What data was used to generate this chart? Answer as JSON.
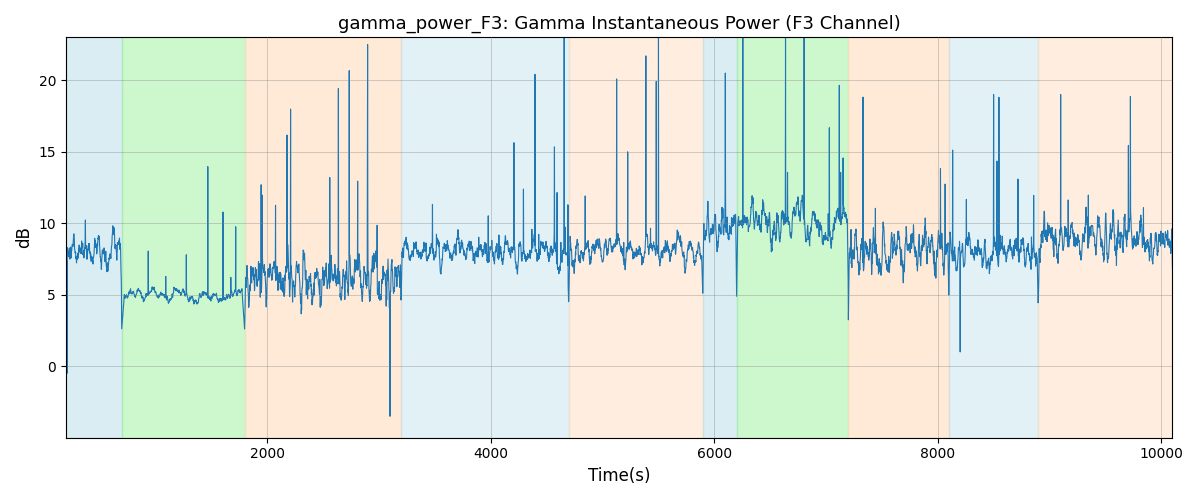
{
  "title": "gamma_power_F3: Gamma Instantaneous Power (F3 Channel)",
  "xlabel": "Time(s)",
  "ylabel": "dB",
  "xlim": [
    200,
    10100
  ],
  "ylim": [
    -5,
    23
  ],
  "background_regions": [
    {
      "start": 200,
      "end": 700,
      "color": "#ADD8E6",
      "alpha": 0.45
    },
    {
      "start": 700,
      "end": 1800,
      "color": "#90EE90",
      "alpha": 0.45
    },
    {
      "start": 1800,
      "end": 3200,
      "color": "#FFDAB9",
      "alpha": 0.55
    },
    {
      "start": 3200,
      "end": 4700,
      "color": "#ADD8E6",
      "alpha": 0.35
    },
    {
      "start": 4700,
      "end": 5900,
      "color": "#FFDAB9",
      "alpha": 0.45
    },
    {
      "start": 5900,
      "end": 6200,
      "color": "#ADD8E6",
      "alpha": 0.45
    },
    {
      "start": 6200,
      "end": 7200,
      "color": "#90EE90",
      "alpha": 0.45
    },
    {
      "start": 7200,
      "end": 8100,
      "color": "#FFDAB9",
      "alpha": 0.55
    },
    {
      "start": 8100,
      "end": 8900,
      "color": "#ADD8E6",
      "alpha": 0.35
    },
    {
      "start": 8900,
      "end": 10100,
      "color": "#FFDAB9",
      "alpha": 0.45
    }
  ],
  "line_color": "#1f77b4",
  "line_width": 0.8,
  "seed": 1234,
  "n_points": 5000,
  "t_start": 200,
  "t_end": 10100,
  "yticks": [
    0,
    5,
    10,
    15,
    20
  ],
  "xticks": [
    2000,
    4000,
    6000,
    8000,
    10000
  ]
}
